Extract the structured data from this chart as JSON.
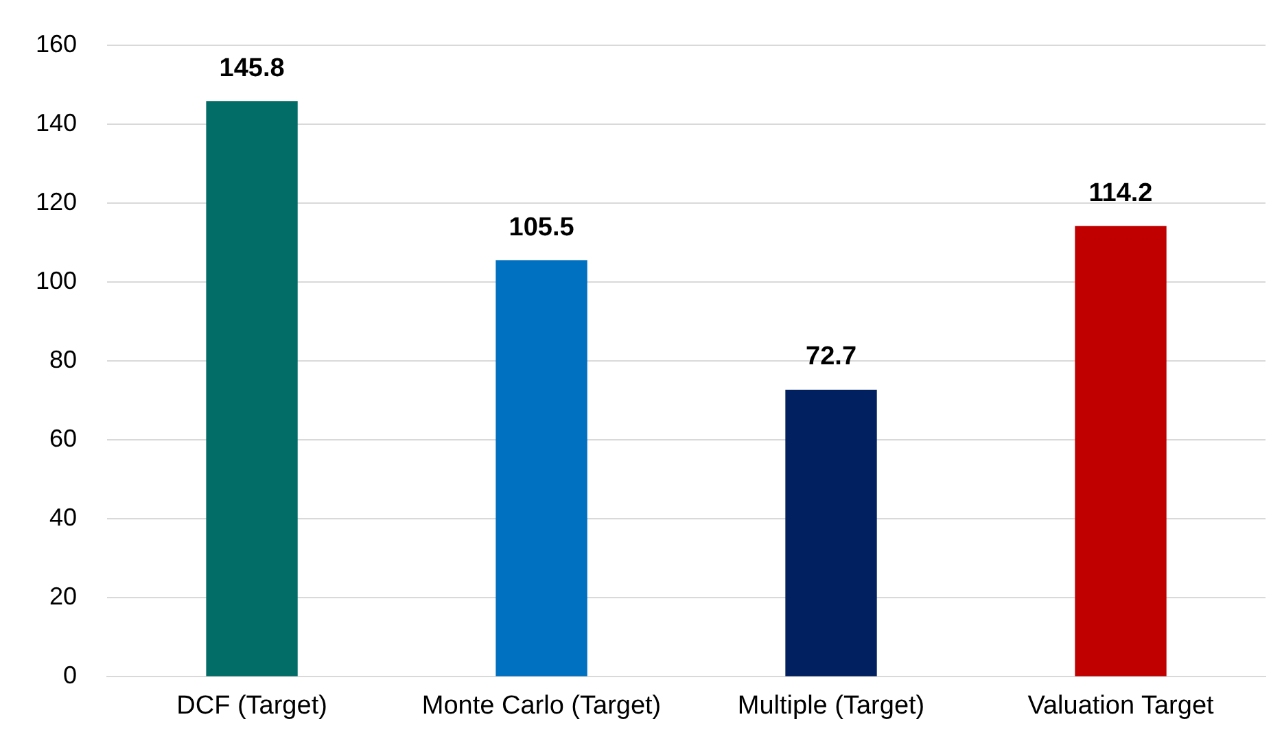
{
  "chart_data": {
    "type": "bar",
    "categories": [
      "DCF (Target)",
      "Monte Carlo (Target)",
      "Multiple (Target)",
      "Valuation Target"
    ],
    "values": [
      145.8,
      105.5,
      72.7,
      114.2
    ],
    "colors": [
      "#026c66",
      "#0070c0",
      "#002060",
      "#c00000"
    ],
    "ylim": [
      0,
      160
    ],
    "yticks": [
      0,
      20,
      40,
      60,
      80,
      100,
      120,
      140,
      160
    ],
    "grid": "y",
    "legend": false,
    "data_labels": true
  }
}
